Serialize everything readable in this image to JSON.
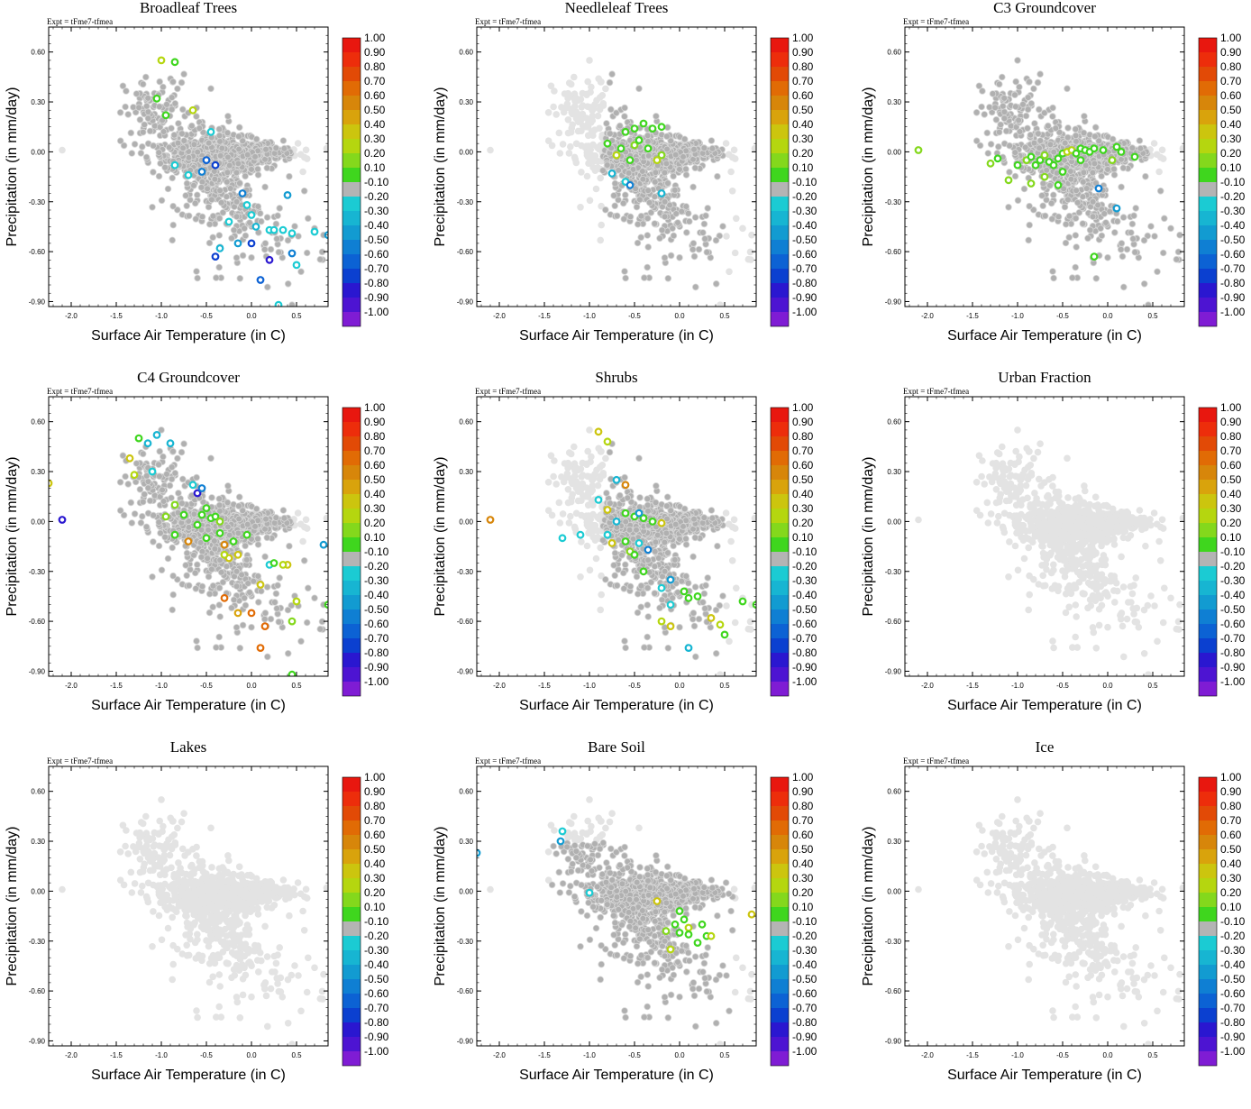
{
  "figure": {
    "expt_label": "Expt = tFme7-tfmea",
    "xlabel": "Surface Air Temperature (in C)",
    "ylabel": "Precipitation (in mm/day)"
  },
  "colors": {
    "background_points": "#e3e3e3",
    "land_points": "#b0b0b0",
    "neutral_bin": "#b4b4b4"
  },
  "colorbar": {
    "labels": [
      "1.00",
      "0.90",
      "0.80",
      "0.70",
      "0.60",
      "0.50",
      "0.40",
      "0.30",
      "0.20",
      "0.10",
      "-0.10",
      "-0.20",
      "-0.30",
      "-0.40",
      "-0.50",
      "-0.60",
      "-0.70",
      "-0.80",
      "-0.90",
      "-1.00"
    ],
    "colors": [
      "#e8170f",
      "#ed2d0b",
      "#e24a06",
      "#e16b05",
      "#d7860a",
      "#d9a30c",
      "#ccc50e",
      "#b5d60f",
      "#84d81c",
      "#3fd61e",
      "#b4b4b4",
      "#1bcbd3",
      "#17b5d2",
      "#129bd1",
      "#0f7fd3",
      "#0c62d4",
      "#0b40d0",
      "#2a17d0",
      "#4d14d2",
      "#7f1cd4"
    ]
  },
  "chart_data": [
    {
      "type": "scatter",
      "title": "Broadleaf Trees",
      "xlim": [
        -2.25,
        0.85
      ],
      "ylim": [
        -0.93,
        0.75
      ],
      "xticks": [
        "-2.0",
        "-1.5",
        "-1.0",
        "-0.5",
        "0.0",
        "0.5"
      ],
      "yticks": [
        "0.60",
        "0.30",
        "0.00",
        "-0.30",
        "-0.60",
        "-0.90"
      ],
      "land": "all",
      "colored": [
        [
          -1.0,
          0.55,
          "0.30"
        ],
        [
          -0.85,
          0.54,
          "0.10"
        ],
        [
          -1.05,
          0.32,
          "0.10"
        ],
        [
          -0.95,
          0.22,
          "0.10"
        ],
        [
          -0.65,
          0.25,
          "0.30"
        ],
        [
          -0.85,
          -0.08,
          "-0.20"
        ],
        [
          -0.7,
          -0.14,
          "-0.20"
        ],
        [
          -0.55,
          -0.12,
          "-0.50"
        ],
        [
          -0.45,
          0.12,
          "-0.20"
        ],
        [
          -0.5,
          -0.05,
          "-0.60"
        ],
        [
          -0.4,
          -0.08,
          "-0.70"
        ],
        [
          -0.1,
          -0.25,
          "-0.50"
        ],
        [
          -0.05,
          -0.32,
          "-0.20"
        ],
        [
          0.0,
          -0.38,
          "-0.20"
        ],
        [
          -0.25,
          -0.42,
          "-0.20"
        ],
        [
          0.4,
          -0.26,
          "-0.40"
        ],
        [
          0.05,
          -0.45,
          "-0.30"
        ],
        [
          0.2,
          -0.47,
          "-0.20"
        ],
        [
          0.25,
          -0.47,
          "-0.20"
        ],
        [
          0.35,
          -0.47,
          "-0.20"
        ],
        [
          0.45,
          -0.49,
          "-0.20"
        ],
        [
          0.7,
          -0.48,
          "-0.20"
        ],
        [
          0.85,
          -0.5,
          "-0.40"
        ],
        [
          0.0,
          -0.55,
          "-0.70"
        ],
        [
          -0.15,
          -0.55,
          "-0.40"
        ],
        [
          -0.35,
          -0.58,
          "-0.30"
        ],
        [
          0.45,
          -0.61,
          "-0.50"
        ],
        [
          0.5,
          -0.68,
          "-0.20"
        ],
        [
          -0.4,
          -0.63,
          "-0.70"
        ],
        [
          0.2,
          -0.65,
          "-0.80"
        ],
        [
          0.1,
          -0.77,
          "-0.60"
        ],
        [
          0.3,
          -0.92,
          "-0.20"
        ]
      ]
    },
    {
      "type": "scatter",
      "title": "Needleleaf Trees",
      "xlim": [
        -2.25,
        0.85
      ],
      "ylim": [
        -0.93,
        0.75
      ],
      "xticks": [
        "-2.0",
        "-1.5",
        "-1.0",
        "-0.5",
        "0.0",
        "0.5"
      ],
      "yticks": [
        "0.60",
        "0.30",
        "0.00",
        "-0.30",
        "-0.60",
        "-0.90"
      ],
      "land": "central",
      "colored": [
        [
          -0.4,
          0.17,
          "0.10"
        ],
        [
          -0.5,
          0.14,
          "0.10"
        ],
        [
          -0.3,
          0.14,
          "0.10"
        ],
        [
          -0.2,
          0.15,
          "0.10"
        ],
        [
          -0.6,
          0.12,
          "0.10"
        ],
        [
          -0.8,
          0.05,
          "0.10"
        ],
        [
          -0.65,
          0.02,
          "0.10"
        ],
        [
          -0.5,
          0.04,
          "0.20"
        ],
        [
          -0.45,
          0.07,
          "0.10"
        ],
        [
          -0.35,
          0.02,
          "0.10"
        ],
        [
          -0.2,
          -0.02,
          "0.20"
        ],
        [
          -0.25,
          -0.05,
          "0.30"
        ],
        [
          -0.7,
          -0.02,
          "0.30"
        ],
        [
          -0.55,
          -0.05,
          "0.10"
        ],
        [
          -0.75,
          -0.13,
          "-0.30"
        ],
        [
          -0.6,
          -0.18,
          "-0.20"
        ],
        [
          -0.55,
          -0.2,
          "-0.50"
        ],
        [
          -0.2,
          -0.25,
          "-0.30"
        ]
      ]
    },
    {
      "type": "scatter",
      "title": "C3 Groundcover",
      "xlim": [
        -2.25,
        0.85
      ],
      "ylim": [
        -0.93,
        0.75
      ],
      "xticks": [
        "-2.0",
        "-1.5",
        "-1.0",
        "-0.5",
        "0.0",
        "0.5"
      ],
      "yticks": [
        "0.60",
        "0.30",
        "0.00",
        "-0.30",
        "-0.60",
        "-0.90"
      ],
      "land": "all",
      "colored": [
        [
          -2.1,
          0.01,
          "0.20"
        ],
        [
          -1.3,
          -0.07,
          "0.20"
        ],
        [
          -1.22,
          -0.04,
          "0.10"
        ],
        [
          -1.1,
          -0.17,
          "0.20"
        ],
        [
          -1.0,
          -0.08,
          "0.10"
        ],
        [
          -0.9,
          -0.05,
          "0.20"
        ],
        [
          -0.85,
          -0.03,
          "0.10"
        ],
        [
          -0.8,
          -0.08,
          "0.10"
        ],
        [
          -0.75,
          -0.05,
          "0.10"
        ],
        [
          -0.7,
          -0.02,
          "0.20"
        ],
        [
          -0.65,
          -0.06,
          "0.10"
        ],
        [
          -0.55,
          -0.04,
          "0.10"
        ],
        [
          -0.5,
          -0.01,
          "0.10"
        ],
        [
          -0.45,
          0.0,
          "0.30"
        ],
        [
          -0.4,
          0.01,
          "0.30"
        ],
        [
          -0.35,
          -0.01,
          "0.10"
        ],
        [
          -0.3,
          0.02,
          "0.10"
        ],
        [
          -0.25,
          0.01,
          "0.10"
        ],
        [
          -0.2,
          0.0,
          "0.10"
        ],
        [
          -0.15,
          0.02,
          "0.10"
        ],
        [
          -0.05,
          0.01,
          "0.10"
        ],
        [
          0.1,
          0.03,
          "0.10"
        ],
        [
          0.15,
          0.0,
          "0.10"
        ],
        [
          0.3,
          -0.03,
          "0.10"
        ],
        [
          -0.5,
          -0.12,
          "0.10"
        ],
        [
          -0.7,
          -0.15,
          "0.20"
        ],
        [
          -0.85,
          -0.19,
          "0.20"
        ],
        [
          -0.55,
          -0.2,
          "0.10"
        ],
        [
          -0.1,
          -0.22,
          "-0.50"
        ],
        [
          0.1,
          -0.34,
          "-0.40"
        ],
        [
          -0.15,
          -0.63,
          "0.10"
        ],
        [
          -0.6,
          -0.08,
          "0.10"
        ],
        [
          -0.3,
          -0.05,
          "0.10"
        ],
        [
          0.05,
          -0.05,
          "0.20"
        ]
      ]
    },
    {
      "type": "scatter",
      "title": "C4 Groundcover",
      "xlim": [
        -2.25,
        0.85
      ],
      "ylim": [
        -0.93,
        0.75
      ],
      "xticks": [
        "-2.0",
        "-1.5",
        "-1.0",
        "-0.5",
        "0.0",
        "0.5"
      ],
      "yticks": [
        "0.60",
        "0.30",
        "0.00",
        "-0.30",
        "-0.60",
        "-0.90"
      ],
      "land": "all",
      "colored": [
        [
          -2.25,
          0.23,
          "0.40"
        ],
        [
          -2.1,
          0.01,
          "-0.80"
        ],
        [
          -1.25,
          0.5,
          "0.10"
        ],
        [
          -1.35,
          0.38,
          "0.40"
        ],
        [
          -1.05,
          0.52,
          "-0.30"
        ],
        [
          -0.9,
          0.47,
          "-0.30"
        ],
        [
          -1.15,
          0.47,
          "-0.30"
        ],
        [
          -1.3,
          0.28,
          "0.30"
        ],
        [
          -1.1,
          0.3,
          "-0.20"
        ],
        [
          -0.85,
          0.1,
          "0.20"
        ],
        [
          -0.65,
          0.22,
          "-0.20"
        ],
        [
          -0.6,
          0.17,
          "-0.80"
        ],
        [
          -0.55,
          0.2,
          "-0.50"
        ],
        [
          -0.5,
          0.08,
          "0.10"
        ],
        [
          -0.45,
          0.02,
          "0.10"
        ],
        [
          -0.4,
          0.03,
          "0.10"
        ],
        [
          -0.55,
          0.04,
          "0.10"
        ],
        [
          -0.35,
          0.0,
          "0.20"
        ],
        [
          -0.6,
          -0.02,
          "0.10"
        ],
        [
          -0.75,
          0.04,
          "0.10"
        ],
        [
          -0.95,
          0.03,
          "0.20"
        ],
        [
          -0.85,
          -0.08,
          "0.10"
        ],
        [
          -0.7,
          -0.12,
          "0.60"
        ],
        [
          -0.5,
          -0.1,
          "0.10"
        ],
        [
          -0.35,
          -0.07,
          "0.10"
        ],
        [
          -0.3,
          -0.14,
          "0.60"
        ],
        [
          -0.2,
          -0.12,
          "0.10"
        ],
        [
          -0.25,
          -0.22,
          "0.40"
        ],
        [
          -0.15,
          -0.2,
          "0.40"
        ],
        [
          -0.05,
          -0.08,
          "0.10"
        ],
        [
          0.1,
          -0.38,
          "0.40"
        ],
        [
          0.2,
          -0.26,
          "-0.20"
        ],
        [
          0.25,
          -0.25,
          "0.10"
        ],
        [
          0.4,
          -0.26,
          "0.40"
        ],
        [
          0.35,
          -0.26,
          "0.30"
        ],
        [
          -0.3,
          -0.46,
          "0.70"
        ],
        [
          -0.15,
          -0.55,
          "0.50"
        ],
        [
          0.0,
          -0.55,
          "0.70"
        ],
        [
          0.15,
          -0.63,
          "0.70"
        ],
        [
          0.1,
          -0.76,
          "0.70"
        ],
        [
          0.45,
          -0.6,
          "0.20"
        ],
        [
          0.5,
          -0.48,
          "0.30"
        ],
        [
          0.8,
          -0.14,
          "-0.40"
        ],
        [
          0.85,
          -0.5,
          "0.10"
        ],
        [
          0.45,
          -0.92,
          "0.10"
        ],
        [
          -0.3,
          -0.2,
          "0.30"
        ]
      ]
    },
    {
      "type": "scatter",
      "title": "Shrubs",
      "xlim": [
        -2.25,
        0.85
      ],
      "ylim": [
        -0.93,
        0.75
      ],
      "xticks": [
        "-2.0",
        "-1.5",
        "-1.0",
        "-0.5",
        "0.0",
        "0.5"
      ],
      "yticks": [
        "0.60",
        "0.30",
        "0.00",
        "-0.30",
        "-0.60",
        "-0.90"
      ],
      "land": "central",
      "colored": [
        [
          -2.1,
          0.01,
          "0.60"
        ],
        [
          -0.9,
          0.54,
          "0.40"
        ],
        [
          -0.8,
          0.48,
          "0.30"
        ],
        [
          -0.7,
          0.25,
          "-0.30"
        ],
        [
          -0.6,
          0.22,
          "0.60"
        ],
        [
          -0.9,
          0.13,
          "-0.20"
        ],
        [
          -0.8,
          0.07,
          "0.40"
        ],
        [
          -0.7,
          0.0,
          "-0.30"
        ],
        [
          -0.5,
          0.03,
          "0.10"
        ],
        [
          -0.4,
          0.02,
          "0.10"
        ],
        [
          -0.3,
          0.0,
          "0.10"
        ],
        [
          -0.2,
          -0.01,
          "0.40"
        ],
        [
          -0.45,
          0.05,
          "-0.40"
        ],
        [
          -1.3,
          -0.1,
          "-0.20"
        ],
        [
          -1.1,
          -0.08,
          "-0.20"
        ],
        [
          -0.8,
          -0.08,
          "-0.20"
        ],
        [
          -0.75,
          -0.13,
          "0.40"
        ],
        [
          -0.6,
          -0.12,
          "0.10"
        ],
        [
          -0.55,
          -0.18,
          "0.20"
        ],
        [
          -0.5,
          -0.2,
          "0.10"
        ],
        [
          -0.45,
          -0.13,
          "-0.20"
        ],
        [
          -0.35,
          -0.17,
          "-0.50"
        ],
        [
          -0.4,
          -0.3,
          "0.10"
        ],
        [
          -0.1,
          -0.35,
          "-0.40"
        ],
        [
          0.05,
          -0.42,
          "0.10"
        ],
        [
          0.1,
          -0.46,
          "0.10"
        ],
        [
          0.2,
          -0.45,
          "0.10"
        ],
        [
          -0.2,
          -0.4,
          "-0.20"
        ],
        [
          -0.1,
          -0.5,
          "-0.20"
        ],
        [
          -0.2,
          -0.6,
          "0.30"
        ],
        [
          -0.1,
          -0.63,
          "0.40"
        ],
        [
          0.35,
          -0.58,
          "0.40"
        ],
        [
          0.45,
          -0.62,
          "0.30"
        ],
        [
          0.5,
          -0.68,
          "0.10"
        ],
        [
          0.7,
          -0.48,
          "0.10"
        ],
        [
          0.85,
          -0.5,
          "0.10"
        ],
        [
          0.1,
          -0.76,
          "-0.30"
        ],
        [
          -0.6,
          0.05,
          "0.10"
        ]
      ]
    },
    {
      "type": "scatter",
      "title": "Urban Fraction",
      "xlim": [
        -2.25,
        0.85
      ],
      "ylim": [
        -0.93,
        0.75
      ],
      "xticks": [
        "-2.0",
        "-1.5",
        "-1.0",
        "-0.5",
        "0.0",
        "0.5"
      ],
      "yticks": [
        "0.60",
        "0.30",
        "0.00",
        "-0.30",
        "-0.60",
        "-0.90"
      ],
      "land": "none",
      "colored": []
    },
    {
      "type": "scatter",
      "title": "Lakes",
      "xlim": [
        -2.25,
        0.85
      ],
      "ylim": [
        -0.93,
        0.75
      ],
      "xticks": [
        "-2.0",
        "-1.5",
        "-1.0",
        "-0.5",
        "0.0",
        "0.5"
      ],
      "yticks": [
        "0.60",
        "0.30",
        "0.00",
        "-0.30",
        "-0.60",
        "-0.90"
      ],
      "land": "none",
      "colored": []
    },
    {
      "type": "scatter",
      "title": "Bare Soil",
      "xlim": [
        -2.25,
        0.85
      ],
      "ylim": [
        -0.93,
        0.75
      ],
      "xticks": [
        "-2.0",
        "-1.5",
        "-1.0",
        "-0.5",
        "0.0",
        "0.5"
      ],
      "yticks": [
        "0.60",
        "0.30",
        "0.00",
        "-0.30",
        "-0.60",
        "-0.90"
      ],
      "land": "bare",
      "colored": [
        [
          -1.3,
          0.36,
          "-0.20"
        ],
        [
          -1.32,
          0.3,
          "-0.40"
        ],
        [
          -2.25,
          0.23,
          "-0.40"
        ],
        [
          -1.0,
          -0.01,
          "-0.20"
        ],
        [
          -0.25,
          -0.06,
          "0.40"
        ],
        [
          0.0,
          -0.12,
          "0.10"
        ],
        [
          0.05,
          -0.17,
          "0.10"
        ],
        [
          -0.05,
          -0.2,
          "0.10"
        ],
        [
          0.1,
          -0.22,
          "0.30"
        ],
        [
          -0.15,
          -0.24,
          "0.20"
        ],
        [
          0.25,
          -0.2,
          "0.10"
        ],
        [
          0.3,
          -0.27,
          "0.10"
        ],
        [
          0.35,
          -0.27,
          "0.30"
        ],
        [
          0.1,
          -0.26,
          "0.10"
        ],
        [
          0.0,
          -0.25,
          "0.10"
        ],
        [
          -0.1,
          -0.35,
          "0.30"
        ],
        [
          0.8,
          -0.14,
          "0.40"
        ],
        [
          0.2,
          -0.31,
          "0.10"
        ]
      ]
    },
    {
      "type": "scatter",
      "title": "Ice",
      "xlim": [
        -2.25,
        0.85
      ],
      "ylim": [
        -0.93,
        0.75
      ],
      "xticks": [
        "-2.0",
        "-1.5",
        "-1.0",
        "-0.5",
        "0.0",
        "0.5"
      ],
      "yticks": [
        "0.60",
        "0.30",
        "0.00",
        "-0.30",
        "-0.60",
        "-0.90"
      ],
      "land": "none",
      "colored": []
    }
  ]
}
